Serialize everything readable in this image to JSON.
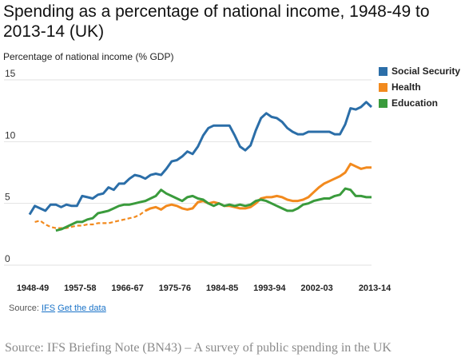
{
  "chart_data": {
    "type": "line",
    "title": "Spending as a percentage of national income, 1948-49 to 2013-14 (UK)",
    "ylabel": "Percentage of national income (% GDP)",
    "xlabel": "",
    "ylim": [
      0,
      15
    ],
    "yticks": [
      "0",
      "5",
      "10",
      "15"
    ],
    "xlim": [
      1948,
      2013
    ],
    "xticks": [
      "1948-49",
      "1957-58",
      "1966-67",
      "1975-76",
      "1984-85",
      "1993-94",
      "2002-03",
      "2013-14"
    ],
    "xtick_years": [
      1948,
      1957,
      1966,
      1975,
      1984,
      1993,
      2002,
      2013
    ],
    "grid": true,
    "legend_position": "top-right",
    "series": [
      {
        "name": "Social Security",
        "color": "#2b6ea8",
        "x": [
          1948,
          1949,
          1950,
          1951,
          1952,
          1953,
          1954,
          1955,
          1956,
          1957,
          1958,
          1959,
          1960,
          1961,
          1962,
          1963,
          1964,
          1965,
          1966,
          1967,
          1968,
          1969,
          1970,
          1971,
          1972,
          1973,
          1974,
          1975,
          1976,
          1977,
          1978,
          1979,
          1980,
          1981,
          1982,
          1983,
          1984,
          1985,
          1986,
          1987,
          1988,
          1989,
          1990,
          1991,
          1992,
          1993,
          1994,
          1995,
          1996,
          1997,
          1998,
          1999,
          2000,
          2001,
          2002,
          2003,
          2004,
          2005,
          2006,
          2007,
          2008,
          2009,
          2010,
          2011,
          2012,
          2013
        ],
        "values": [
          4.1,
          4.8,
          4.6,
          4.4,
          4.9,
          4.9,
          4.7,
          4.9,
          4.8,
          4.8,
          5.6,
          5.5,
          5.4,
          5.7,
          5.8,
          6.3,
          6.1,
          6.6,
          6.6,
          7.0,
          7.3,
          7.2,
          7.0,
          7.3,
          7.4,
          7.3,
          7.8,
          8.4,
          8.5,
          8.8,
          9.2,
          9.0,
          9.6,
          10.5,
          11.1,
          11.3,
          11.3,
          11.3,
          11.3,
          10.5,
          9.6,
          9.3,
          9.7,
          10.9,
          11.9,
          12.3,
          12.0,
          11.9,
          11.6,
          11.1,
          10.8,
          10.6,
          10.6,
          10.8,
          10.8,
          10.8,
          10.8,
          10.8,
          10.6,
          10.6,
          11.4,
          12.7,
          12.6,
          12.8,
          13.2,
          12.8
        ]
      },
      {
        "name": "Health",
        "color": "#f28a1e",
        "dashed_until": 1970,
        "x": [
          1949,
          1950,
          1951,
          1952,
          1953,
          1954,
          1955,
          1956,
          1957,
          1958,
          1959,
          1960,
          1961,
          1962,
          1963,
          1964,
          1965,
          1966,
          1967,
          1968,
          1969,
          1970,
          1971,
          1972,
          1973,
          1974,
          1975,
          1976,
          1977,
          1978,
          1979,
          1980,
          1981,
          1982,
          1983,
          1984,
          1985,
          1986,
          1987,
          1988,
          1989,
          1990,
          1991,
          1992,
          1993,
          1994,
          1995,
          1996,
          1997,
          1998,
          1999,
          2000,
          2001,
          2002,
          2003,
          2004,
          2005,
          2006,
          2007,
          2008,
          2009,
          2010,
          2011,
          2012,
          2013
        ],
        "values": [
          3.5,
          3.6,
          3.3,
          3.1,
          3.0,
          3.0,
          3.0,
          3.1,
          3.2,
          3.2,
          3.3,
          3.3,
          3.4,
          3.4,
          3.4,
          3.5,
          3.6,
          3.7,
          3.8,
          3.9,
          4.1,
          4.4,
          4.6,
          4.7,
          4.5,
          4.8,
          4.9,
          4.8,
          4.6,
          4.5,
          4.6,
          5.1,
          5.2,
          5.0,
          5.1,
          5.0,
          4.8,
          4.8,
          4.7,
          4.6,
          4.6,
          4.7,
          5.0,
          5.4,
          5.5,
          5.5,
          5.6,
          5.5,
          5.3,
          5.2,
          5.2,
          5.3,
          5.5,
          5.9,
          6.3,
          6.6,
          6.8,
          7.0,
          7.2,
          7.5,
          8.2,
          8.0,
          7.8,
          7.9,
          7.9
        ]
      },
      {
        "name": "Education",
        "color": "#3a9b3c",
        "x": [
          1953,
          1954,
          1955,
          1956,
          1957,
          1958,
          1959,
          1960,
          1961,
          1962,
          1963,
          1964,
          1965,
          1966,
          1967,
          1968,
          1969,
          1970,
          1971,
          1972,
          1973,
          1974,
          1975,
          1976,
          1977,
          1978,
          1979,
          1980,
          1981,
          1982,
          1983,
          1984,
          1985,
          1986,
          1987,
          1988,
          1989,
          1990,
          1991,
          1992,
          1993,
          1994,
          1995,
          1996,
          1997,
          1998,
          1999,
          2000,
          2001,
          2002,
          2003,
          2004,
          2005,
          2006,
          2007,
          2008,
          2009,
          2010,
          2011,
          2012,
          2013
        ],
        "values": [
          2.8,
          2.9,
          3.1,
          3.3,
          3.5,
          3.5,
          3.7,
          3.8,
          4.2,
          4.3,
          4.4,
          4.6,
          4.8,
          4.9,
          4.9,
          5.0,
          5.1,
          5.2,
          5.4,
          5.6,
          6.1,
          5.8,
          5.6,
          5.4,
          5.2,
          5.5,
          5.6,
          5.4,
          5.3,
          5.0,
          4.8,
          5.0,
          4.8,
          4.9,
          4.8,
          4.9,
          4.8,
          4.9,
          5.2,
          5.3,
          5.2,
          5.0,
          4.8,
          4.6,
          4.4,
          4.4,
          4.6,
          4.9,
          5.0,
          5.2,
          5.3,
          5.4,
          5.4,
          5.6,
          5.7,
          6.2,
          6.1,
          5.6,
          5.6,
          5.5,
          5.5
        ]
      }
    ]
  },
  "source": {
    "prefix": "Source: ",
    "ifs_link": "IFS",
    "data_link": "Get the data"
  },
  "caption": "Source: IFS Briefing Note (BN43) – A survey of public spending in the UK"
}
